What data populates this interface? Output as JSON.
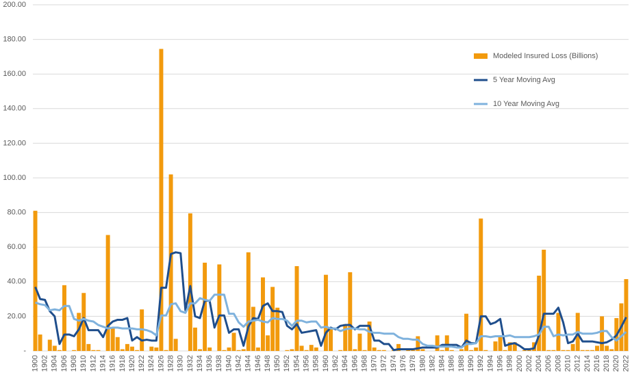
{
  "chart_data": {
    "type": "bar",
    "categories": [
      "1900",
      null,
      "1902",
      null,
      "1904",
      null,
      "1906",
      null,
      "1908",
      null,
      "1910",
      null,
      "1912",
      null,
      "1914",
      null,
      "1916",
      null,
      "1918",
      null,
      "1920",
      null,
      "1922",
      null,
      "1924",
      null,
      "1926",
      null,
      "1928",
      null,
      "1930",
      null,
      "1932",
      null,
      "1934",
      null,
      "1936",
      null,
      "1938",
      null,
      "1940",
      null,
      "1942",
      null,
      "1944",
      null,
      "1946",
      null,
      "1948",
      null,
      "1950",
      null,
      "1952",
      null,
      "1954",
      null,
      "1956",
      null,
      "1958",
      null,
      "1960",
      null,
      "1962",
      null,
      "1964",
      null,
      "1966",
      null,
      "1968",
      null,
      "1970",
      null,
      "1972",
      null,
      "1974",
      null,
      "1976",
      null,
      "1978",
      null,
      "1980",
      null,
      "1982",
      null,
      "1984",
      null,
      "1986",
      null,
      "1988",
      null,
      "1990",
      null,
      "1992",
      null,
      "1994",
      null,
      "1996",
      null,
      "1998",
      null,
      "2000",
      null,
      "2002",
      null,
      "2004",
      null,
      "2006",
      null,
      "2008",
      null,
      "2010",
      null,
      "2012",
      null,
      "2014",
      null,
      "2016",
      null,
      "2018",
      null,
      "2020",
      null,
      "2022"
    ],
    "series": [
      {
        "name": "Modeled Insured Loss (Billions)",
        "type": "bar",
        "color": "#f29a0d",
        "values": [
          81,
          9.5,
          0,
          6.5,
          3,
          0.5,
          38,
          0,
          0.5,
          22,
          33.5,
          4,
          0.5,
          0.5,
          0,
          67,
          13,
          8,
          1,
          4,
          2.5,
          0.5,
          24,
          0,
          2.5,
          2,
          174.5,
          0.5,
          102,
          7,
          0,
          0,
          79.5,
          13.5,
          1,
          51,
          2,
          0,
          50,
          0.5,
          2,
          10.5,
          0.5,
          1,
          57,
          25.5,
          2,
          42.5,
          9,
          37,
          25,
          0,
          0.5,
          1,
          49,
          3,
          0.5,
          3.5,
          2,
          0,
          44,
          13,
          0,
          0.5,
          15.5,
          45.5,
          1,
          10,
          0.5,
          17,
          2,
          0.5,
          0.5,
          0,
          0.5,
          4,
          0,
          0.5,
          0.5,
          8.5,
          1,
          0,
          0,
          9,
          0.5,
          9,
          0.5,
          0,
          1,
          21.5,
          0.5,
          2,
          76.5,
          0.5,
          0,
          5.5,
          8,
          0.5,
          5,
          5,
          0,
          0.5,
          0.5,
          5,
          43.5,
          58.5,
          0.5,
          0.5,
          22,
          0.5,
          0.5,
          4,
          22,
          0.5,
          0.5,
          0.5,
          3,
          20,
          3,
          1,
          19,
          27.5,
          41.5
        ]
      },
      {
        "name": "5 Year Moving Avg",
        "type": "line",
        "color": "#1f4e8c",
        "values": [
          37,
          30,
          29.5,
          23,
          20,
          4,
          9.5,
          9.5,
          8.5,
          12.5,
          19,
          12,
          12,
          12,
          8,
          14.5,
          17,
          18,
          18,
          19,
          6,
          8,
          6,
          6.5,
          6,
          6,
          36.5,
          36.5,
          56,
          57,
          56.5,
          23.5,
          37.5,
          20,
          19,
          29,
          29,
          13.5,
          20.5,
          20.5,
          10.5,
          12.5,
          12.5,
          3,
          14,
          19,
          18.5,
          26,
          27.5,
          23,
          23,
          22.5,
          14.5,
          12.5,
          15.5,
          10.5,
          11,
          11.5,
          12,
          3,
          10.5,
          13.5,
          12.5,
          14.5,
          15,
          15,
          12.5,
          14.5,
          14.5,
          14.5,
          6,
          6,
          4,
          4,
          0.5,
          1,
          1,
          1,
          1,
          1.5,
          2,
          2,
          2,
          2,
          3.5,
          3.5,
          3.5,
          3.5,
          2,
          6,
          4.5,
          4.5,
          20,
          20,
          15.5,
          16.5,
          18.5,
          3,
          4,
          4.5,
          3,
          1,
          1,
          1.5,
          9,
          21.5,
          21.5,
          21.5,
          25,
          16.5,
          4.5,
          5.5,
          10,
          5.5,
          5.5,
          5.5,
          5,
          4.5,
          5,
          6.5,
          9,
          14,
          19.5
        ]
      },
      {
        "name": "10 Year Moving Avg",
        "type": "line",
        "color": "#7fb2dd",
        "values": [
          28,
          27,
          26.5,
          23.5,
          24,
          23.5,
          26,
          26,
          18.5,
          17.5,
          18.5,
          17.5,
          17,
          15,
          14,
          13,
          13.5,
          13.5,
          13,
          13,
          13,
          12.5,
          12.5,
          12,
          11,
          9,
          20.5,
          20.5,
          27,
          27.5,
          23,
          22,
          27.5,
          27.5,
          30.5,
          29.5,
          29,
          32.5,
          32.5,
          32.5,
          21.5,
          21.5,
          16.5,
          14,
          17,
          17.5,
          18,
          17,
          16.5,
          19,
          18.5,
          18.5,
          17.5,
          14.5,
          17.5,
          17.5,
          16.5,
          17,
          17,
          13.5,
          14,
          13,
          13,
          11.5,
          12.5,
          13,
          13,
          12.5,
          12.5,
          11,
          10.5,
          10.5,
          10,
          10,
          10,
          8,
          7,
          7,
          6.5,
          6.5,
          4,
          3,
          3,
          2.5,
          2.5,
          2.5,
          2.5,
          2,
          2,
          4,
          4,
          4.5,
          8.5,
          8.5,
          8,
          8.5,
          8.5,
          8.5,
          9,
          8,
          8,
          8,
          8,
          8.5,
          9.5,
          14,
          14,
          8.5,
          9.5,
          9,
          9.5,
          9.5,
          11,
          10,
          10,
          10,
          10.5,
          11.5,
          11.5,
          8,
          6,
          8.5,
          11
        ]
      }
    ],
    "ylim": [
      0,
      200
    ],
    "yticks": [
      {
        "value": 0,
        "label": "-"
      },
      {
        "value": 20,
        "label": "20.00"
      },
      {
        "value": 40,
        "label": "40.00"
      },
      {
        "value": 60,
        "label": "60.00"
      },
      {
        "value": 80,
        "label": "80.00"
      },
      {
        "value": 100,
        "label": "100.00"
      },
      {
        "value": 120,
        "label": "120.00"
      },
      {
        "value": 140,
        "label": "140.00"
      },
      {
        "value": 160,
        "label": "160.00"
      },
      {
        "value": 180,
        "label": "180.00"
      },
      {
        "value": 200,
        "label": "200.00"
      }
    ],
    "grid": true,
    "legend": "right"
  }
}
